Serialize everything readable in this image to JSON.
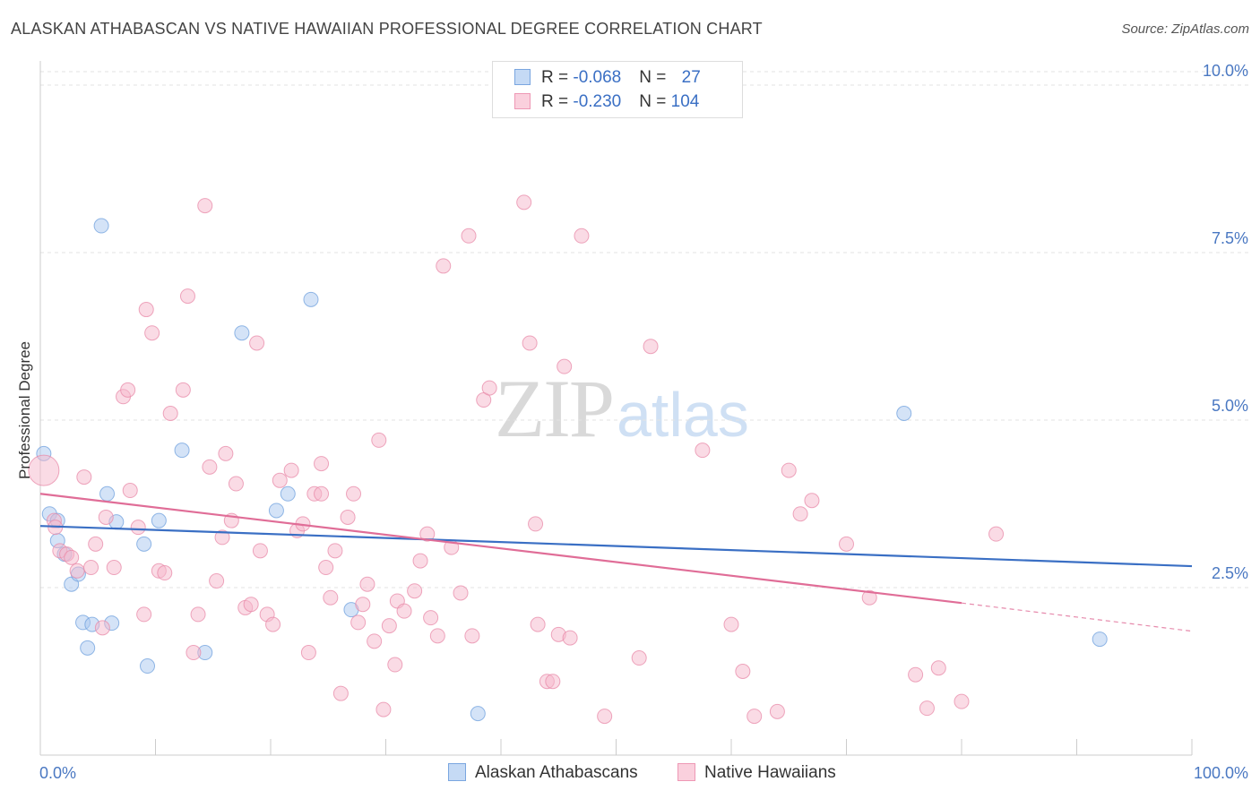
{
  "header": {
    "title": "ALASKAN ATHABASCAN VS NATIVE HAWAIIAN PROFESSIONAL DEGREE CORRELATION CHART",
    "source": "Source: ZipAtlas.com"
  },
  "watermark": {
    "zip": "ZIP",
    "atlas": "atlas"
  },
  "legend": {
    "rows": [
      {
        "r_label": "R = ",
        "r_value": "-0.068",
        "n_label": "N = ",
        "n_value": "27",
        "color": "#a9c8f0"
      },
      {
        "r_label": "R = ",
        "r_value": "-0.230",
        "n_label": "N = ",
        "n_value": "104",
        "color": "#f5b8cb"
      }
    ]
  },
  "bottom_legend": [
    {
      "label": "Alaskan Athabascans",
      "color": "#a9c8f0"
    },
    {
      "label": "Native Hawaiians",
      "color": "#f5b8cb"
    }
  ],
  "chart_data": {
    "type": "scatter",
    "ylabel": "Professional Degree",
    "xlim": [
      0,
      100
    ],
    "ylim": [
      0,
      10.2
    ],
    "x_tick_labels": {
      "left": "0.0%",
      "right": "100.0%"
    },
    "y_ticks": [
      {
        "value": 2.5,
        "label": "2.5%"
      },
      {
        "value": 5.0,
        "label": "5.0%"
      },
      {
        "value": 7.5,
        "label": "7.5%"
      },
      {
        "value": 10.0,
        "label": "10.0%"
      }
    ],
    "grid": "horizontal dashed",
    "series": [
      {
        "name": "Alaskan Athabascans",
        "color": "#6fa0de",
        "fill": "#a9c8f0",
        "trend": {
          "x": [
            0,
            100
          ],
          "y": [
            3.42,
            2.82
          ],
          "color": "#3a6fc4"
        },
        "points": [
          [
            0.3,
            4.5
          ],
          [
            0.8,
            3.6
          ],
          [
            1.5,
            3.5
          ],
          [
            1.5,
            3.2
          ],
          [
            2.1,
            3.0
          ],
          [
            2.7,
            2.55
          ],
          [
            3.3,
            2.7
          ],
          [
            3.7,
            1.98
          ],
          [
            4.1,
            1.6
          ],
          [
            4.5,
            1.95
          ],
          [
            5.3,
            7.9
          ],
          [
            5.8,
            3.9
          ],
          [
            6.2,
            1.97
          ],
          [
            6.6,
            3.48
          ],
          [
            9.0,
            3.15
          ],
          [
            9.3,
            1.33
          ],
          [
            10.3,
            3.5
          ],
          [
            12.3,
            4.55
          ],
          [
            14.3,
            1.53
          ],
          [
            17.5,
            6.3
          ],
          [
            20.5,
            3.65
          ],
          [
            21.5,
            3.9
          ],
          [
            23.5,
            6.8
          ],
          [
            27.0,
            2.17
          ],
          [
            38.0,
            0.62
          ],
          [
            75.0,
            5.1
          ],
          [
            92.0,
            1.73
          ]
        ]
      },
      {
        "name": "Native Hawaiians",
        "color": "#e88aa8",
        "fill": "#f5b8cb",
        "trend": {
          "x": [
            0,
            80
          ],
          "y": [
            3.9,
            2.27
          ],
          "dash_to": [
            100,
            1.85
          ],
          "color": "#e06d97"
        },
        "points": [
          [
            0.3,
            4.25
          ],
          [
            1.2,
            3.5
          ],
          [
            1.3,
            3.4
          ],
          [
            1.7,
            3.05
          ],
          [
            2.3,
            3.0
          ],
          [
            2.7,
            2.95
          ],
          [
            3.2,
            2.75
          ],
          [
            3.8,
            4.15
          ],
          [
            4.4,
            2.8
          ],
          [
            4.8,
            3.15
          ],
          [
            5.4,
            1.9
          ],
          [
            5.7,
            3.55
          ],
          [
            6.4,
            2.8
          ],
          [
            7.2,
            5.35
          ],
          [
            7.6,
            5.45
          ],
          [
            7.8,
            3.95
          ],
          [
            8.5,
            3.4
          ],
          [
            9.0,
            2.1
          ],
          [
            9.2,
            6.65
          ],
          [
            9.7,
            6.3
          ],
          [
            10.3,
            2.75
          ],
          [
            10.8,
            2.72
          ],
          [
            11.3,
            5.1
          ],
          [
            12.4,
            5.45
          ],
          [
            12.8,
            6.85
          ],
          [
            13.3,
            1.53
          ],
          [
            13.7,
            2.1
          ],
          [
            14.3,
            8.2
          ],
          [
            14.7,
            4.3
          ],
          [
            15.3,
            2.6
          ],
          [
            15.8,
            3.25
          ],
          [
            16.1,
            4.5
          ],
          [
            16.6,
            3.5
          ],
          [
            17.0,
            4.05
          ],
          [
            17.8,
            2.2
          ],
          [
            18.3,
            2.25
          ],
          [
            18.8,
            6.15
          ],
          [
            19.1,
            3.05
          ],
          [
            19.7,
            2.1
          ],
          [
            20.2,
            1.95
          ],
          [
            20.8,
            4.1
          ],
          [
            21.8,
            4.25
          ],
          [
            22.3,
            3.35
          ],
          [
            22.8,
            3.45
          ],
          [
            23.3,
            1.53
          ],
          [
            23.8,
            3.9
          ],
          [
            24.4,
            3.9
          ],
          [
            24.4,
            4.35
          ],
          [
            24.8,
            2.8
          ],
          [
            25.2,
            2.35
          ],
          [
            25.6,
            3.05
          ],
          [
            26.1,
            0.92
          ],
          [
            26.7,
            3.55
          ],
          [
            27.2,
            3.9
          ],
          [
            27.6,
            1.98
          ],
          [
            28.0,
            2.25
          ],
          [
            28.4,
            2.55
          ],
          [
            29.0,
            1.7
          ],
          [
            29.4,
            4.7
          ],
          [
            29.8,
            0.68
          ],
          [
            30.3,
            1.93
          ],
          [
            30.8,
            1.35
          ],
          [
            31.0,
            2.3
          ],
          [
            31.6,
            2.15
          ],
          [
            32.5,
            2.45
          ],
          [
            33.0,
            2.9
          ],
          [
            33.6,
            3.3
          ],
          [
            33.9,
            2.05
          ],
          [
            34.5,
            1.78
          ],
          [
            35.0,
            7.3
          ],
          [
            35.7,
            3.1
          ],
          [
            36.5,
            2.42
          ],
          [
            37.2,
            7.75
          ],
          [
            37.5,
            1.78
          ],
          [
            38.5,
            5.3
          ],
          [
            39.0,
            5.48
          ],
          [
            42.0,
            8.25
          ],
          [
            42.5,
            6.15
          ],
          [
            43.0,
            3.45
          ],
          [
            43.2,
            1.95
          ],
          [
            44.0,
            1.1
          ],
          [
            44.5,
            1.1
          ],
          [
            45.0,
            1.8
          ],
          [
            45.5,
            5.8
          ],
          [
            46.0,
            1.75
          ],
          [
            47.0,
            7.75
          ],
          [
            49.0,
            0.58
          ],
          [
            52.0,
            1.45
          ],
          [
            53.0,
            6.1
          ],
          [
            57.5,
            4.55
          ],
          [
            60.0,
            1.95
          ],
          [
            61.0,
            1.25
          ],
          [
            62.0,
            0.58
          ],
          [
            64.0,
            0.65
          ],
          [
            65.0,
            4.25
          ],
          [
            66.0,
            3.6
          ],
          [
            67.0,
            3.8
          ],
          [
            70.0,
            3.15
          ],
          [
            72.0,
            2.35
          ],
          [
            76.0,
            1.2
          ],
          [
            77.0,
            0.7
          ],
          [
            78.0,
            1.3
          ],
          [
            80.0,
            0.8
          ],
          [
            83.0,
            3.3
          ]
        ]
      }
    ]
  }
}
